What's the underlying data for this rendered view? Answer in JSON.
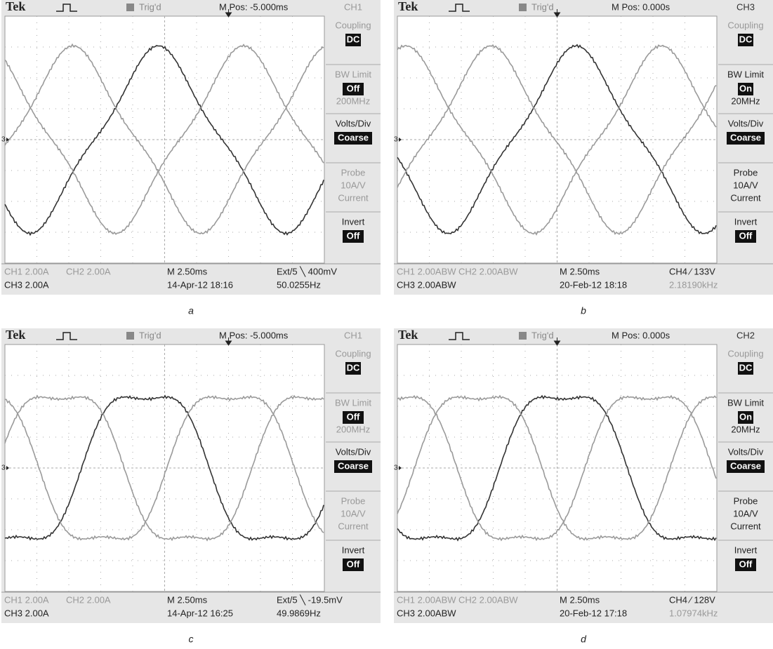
{
  "panels": [
    {
      "caption": "a",
      "header": {
        "brand": "Tek",
        "trigger": "Trig'd",
        "position": "M Pos: -5.000ms",
        "channel": "CH1"
      },
      "marker": "3",
      "menu": [
        {
          "label": "Coupling",
          "value": "DC"
        },
        {
          "label": "BW Limit",
          "value": "Off",
          "note": [
            "200MHz"
          ]
        },
        {
          "label": "Volts/Div",
          "value": "Coarse"
        },
        {
          "label": "Probe",
          "note": [
            "10A/V",
            "Current"
          ]
        },
        {
          "label": "Invert",
          "value": "Off"
        }
      ],
      "status": [
        [
          "CH1  2.00A",
          "CH2  2.00A",
          "M 2.50ms",
          "Ext/5 ╲ 400mV"
        ],
        [
          "CH3  2.00A",
          "14-Apr-12 18:16",
          "50.0255Hz"
        ]
      ]
    },
    {
      "caption": "b",
      "header": {
        "brand": "Tek",
        "trigger": "Trig'd",
        "position": "M Pos: 0.000s",
        "channel": "CH3"
      },
      "marker": "3",
      "menu": [
        {
          "label": "Coupling",
          "value": "DC"
        },
        {
          "label": "BW Limit",
          "value": "On",
          "note": [
            "20MHz"
          ]
        },
        {
          "label": "Volts/Div",
          "value": "Coarse"
        },
        {
          "label": "Probe",
          "note": [
            "10A/V",
            "Current"
          ]
        },
        {
          "label": "Invert",
          "value": "Off"
        }
      ],
      "status": [
        [
          "CH1  2.00ABW",
          "CH2  2.00ABW",
          "M 2.50ms",
          "CH4 ⁄ 133V"
        ],
        [
          "CH3  2.00ABW",
          "20-Feb-12 18:18",
          "2.18190kHz"
        ]
      ]
    },
    {
      "caption": "c",
      "header": {
        "brand": "Tek",
        "trigger": "Trig'd",
        "position": "M Pos: -5.000ms",
        "channel": "CH1"
      },
      "marker": "3",
      "menu": [
        {
          "label": "Coupling",
          "value": "DC"
        },
        {
          "label": "BW Limit",
          "value": "Off",
          "note": [
            "200MHz"
          ]
        },
        {
          "label": "Volts/Div",
          "value": "Coarse"
        },
        {
          "label": "Probe",
          "note": [
            "10A/V",
            "Current"
          ]
        },
        {
          "label": "Invert",
          "value": "Off"
        }
      ],
      "status": [
        [
          "CH1  2.00A",
          "CH2  2.00A",
          "M 2.50ms",
          "Ext/5 ╲ -19.5mV"
        ],
        [
          "CH3  2.00A",
          "14-Apr-12 16:25",
          "49.9869Hz"
        ]
      ]
    },
    {
      "caption": "d",
      "header": {
        "brand": "Tek",
        "trigger": "Trig'd",
        "position": "M Pos: 0.000s",
        "channel": "CH2"
      },
      "marker": "3",
      "menu": [
        {
          "label": "Coupling",
          "value": "DC"
        },
        {
          "label": "BW Limit",
          "value": "On",
          "note": [
            "20MHz"
          ]
        },
        {
          "label": "Volts/Div",
          "value": "Coarse"
        },
        {
          "label": "Probe",
          "note": [
            "10A/V",
            "Current"
          ]
        },
        {
          "label": "Invert",
          "value": "Off"
        }
      ],
      "status": [
        [
          "CH1  2.00ABW",
          "CH2  2.00ABW",
          "M 2.50ms",
          "CH4 ⁄ 128V"
        ],
        [
          "CH3  2.00ABW",
          "20-Feb-12 17:18",
          "1.07974kHz"
        ]
      ]
    }
  ]
}
